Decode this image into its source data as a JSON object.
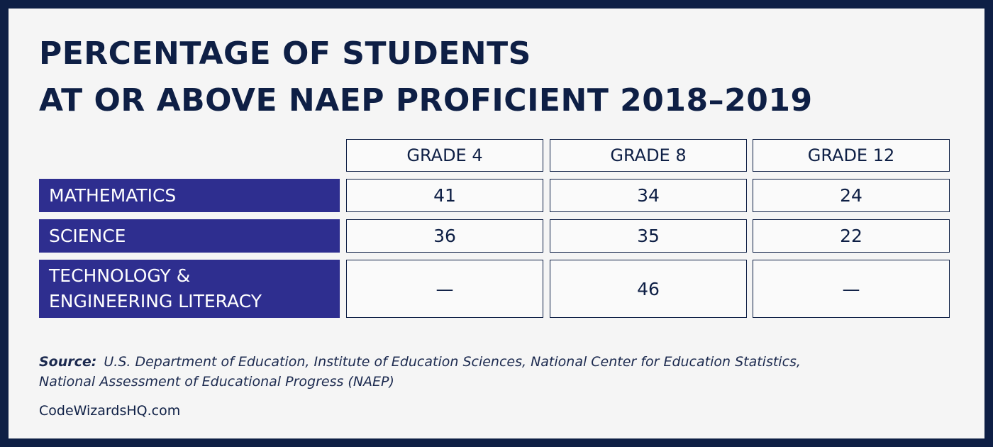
{
  "title": {
    "lines": [
      "PERCENTAGE OF STUDENTS",
      "AT OR ABOVE NAEP PROFICIENT 2018–2019"
    ]
  },
  "table": {
    "columns": [
      "GRADE 4",
      "GRADE 8",
      "GRADE 12"
    ],
    "rows": [
      {
        "label": [
          "MATHEMATICS"
        ],
        "cells": [
          "41",
          "34",
          "24"
        ]
      },
      {
        "label": [
          "SCIENCE"
        ],
        "cells": [
          "36",
          "35",
          "22"
        ]
      },
      {
        "label": [
          "TECHNOLOGY &",
          "ENGINEERING LITERACY"
        ],
        "cells": [
          "—",
          "46",
          "—"
        ]
      }
    ]
  },
  "source": {
    "label": "Source:",
    "lines": [
      "U.S. Department of Education, Institute of Education Sciences, National Center for Education Statistics,",
      "National Assessment of Educational Progress (NAEP)"
    ]
  },
  "footer": {
    "site": "CodeWizardsHQ.com"
  }
}
